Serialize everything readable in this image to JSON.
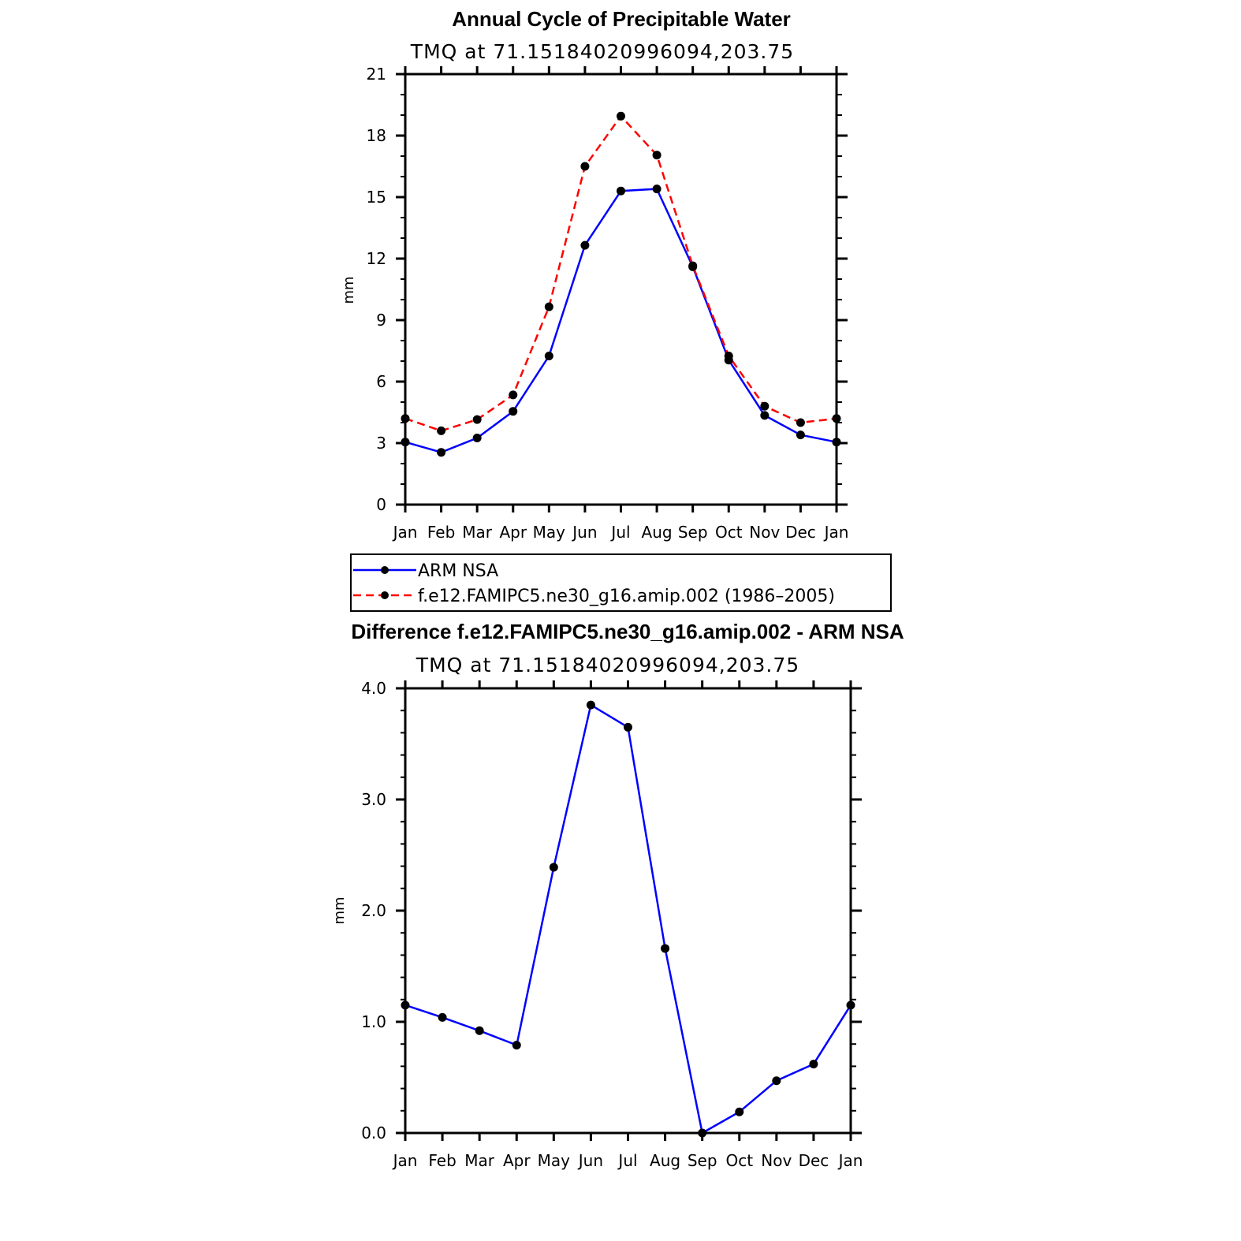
{
  "chart_data": [
    {
      "type": "line",
      "title": "Annual Cycle of Precipitable Water",
      "subtitle": "TMQ at 71.15184020996094,203.75",
      "ylabel": "mm",
      "ylim": [
        0,
        21
      ],
      "yticks": [
        "0",
        "3",
        "6",
        "9",
        "12",
        "15",
        "18",
        "21"
      ],
      "categories": [
        "Jan",
        "Feb",
        "Mar",
        "Apr",
        "May",
        "Jun",
        "Jul",
        "Aug",
        "Sep",
        "Oct",
        "Nov",
        "Dec",
        "Jan"
      ],
      "series": [
        {
          "name": "ARM NSA",
          "color": "#0000ff",
          "dash": "solid",
          "values": [
            3.05,
            2.55,
            3.25,
            4.55,
            7.25,
            12.65,
            15.3,
            15.4,
            11.6,
            7.05,
            4.35,
            3.4,
            3.05
          ]
        },
        {
          "name": "f.e12.FAMIPC5.ne30_g16.amip.002 (1986–2005)",
          "color": "#ff0000",
          "dash": "dashed",
          "values": [
            4.2,
            3.6,
            4.15,
            5.35,
            9.65,
            16.5,
            18.95,
            17.05,
            11.65,
            7.25,
            4.8,
            4.0,
            4.2
          ]
        }
      ]
    },
    {
      "type": "line",
      "title": "Difference f.e12.FAMIPC5.ne30_g16.amip.002 - ARM NSA",
      "subtitle": "TMQ at 71.15184020996094,203.75",
      "ylabel": "mm",
      "ylim": [
        0,
        4
      ],
      "yticks": [
        "0.0",
        "1.0",
        "2.0",
        "3.0",
        "4.0"
      ],
      "categories": [
        "Jan",
        "Feb",
        "Mar",
        "Apr",
        "May",
        "Jun",
        "Jul",
        "Aug",
        "Sep",
        "Oct",
        "Nov",
        "Dec",
        "Jan"
      ],
      "series": [
        {
          "name": "Difference",
          "color": "#0000ff",
          "dash": "solid",
          "values": [
            1.15,
            1.04,
            0.92,
            0.79,
            2.39,
            3.85,
            3.65,
            1.66,
            0.0,
            0.19,
            0.47,
            0.62,
            1.15
          ]
        }
      ]
    }
  ]
}
